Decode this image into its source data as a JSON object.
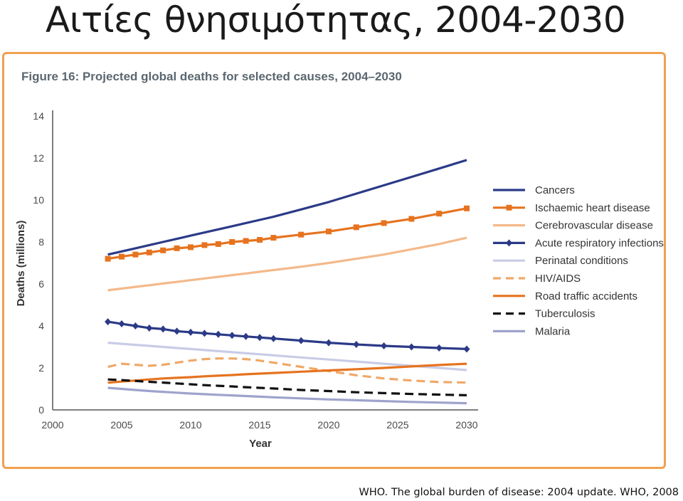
{
  "slide": {
    "title": "Αιτίες θνησιμότητας, 2004-2030",
    "caption": "WHO. The global burden of disease: 2004 update. WHO, 2008"
  },
  "chart_data": {
    "type": "line",
    "title": "Figure 16: Projected global deaths for selected causes, 2004–2030",
    "xlabel": "Year",
    "ylabel": "Deaths (millions)",
    "xlim": [
      2000,
      2030
    ],
    "ylim": [
      0,
      14
    ],
    "xticks": [
      2000,
      2005,
      2010,
      2015,
      2020,
      2025,
      2030
    ],
    "yticks": [
      0,
      2,
      4,
      6,
      8,
      10,
      12,
      14
    ],
    "grid": false,
    "legend_position": "right",
    "x": [
      2004,
      2005,
      2006,
      2007,
      2008,
      2009,
      2010,
      2011,
      2012,
      2013,
      2014,
      2015,
      2016,
      2018,
      2020,
      2022,
      2024,
      2026,
      2028,
      2030
    ],
    "series": [
      {
        "name": "Cancers",
        "color": "#2b3a87",
        "style": "solid",
        "marker": "none",
        "values": [
          7.4,
          7.55,
          7.7,
          7.85,
          8.0,
          8.15,
          8.3,
          8.45,
          8.6,
          8.75,
          8.9,
          9.05,
          9.2,
          9.55,
          9.9,
          10.3,
          10.7,
          11.1,
          11.5,
          11.9
        ]
      },
      {
        "name": "Ischaemic heart disease",
        "color": "#e6731f",
        "style": "solid",
        "marker": "square",
        "values": [
          7.2,
          7.3,
          7.4,
          7.5,
          7.6,
          7.7,
          7.75,
          7.85,
          7.9,
          8.0,
          8.05,
          8.1,
          8.2,
          8.35,
          8.5,
          8.7,
          8.9,
          9.1,
          9.35,
          9.6
        ]
      },
      {
        "name": "Cerebrovascular disease",
        "color": "#f4b98a",
        "style": "solid",
        "marker": "none",
        "values": [
          5.7,
          5.78,
          5.86,
          5.94,
          6.02,
          6.1,
          6.18,
          6.26,
          6.34,
          6.42,
          6.5,
          6.58,
          6.66,
          6.82,
          7.0,
          7.2,
          7.4,
          7.65,
          7.9,
          8.2
        ]
      },
      {
        "name": "Acute respiratory infections",
        "color": "#2b3a87",
        "style": "solid",
        "marker": "diamond",
        "values": [
          4.2,
          4.1,
          4.0,
          3.9,
          3.85,
          3.75,
          3.7,
          3.65,
          3.6,
          3.55,
          3.5,
          3.45,
          3.4,
          3.3,
          3.2,
          3.12,
          3.05,
          3.0,
          2.95,
          2.9
        ]
      },
      {
        "name": "Perinatal conditions",
        "color": "#c9cce6",
        "style": "solid",
        "marker": "none",
        "values": [
          3.2,
          3.15,
          3.1,
          3.05,
          3.0,
          2.95,
          2.9,
          2.85,
          2.8,
          2.75,
          2.7,
          2.65,
          2.6,
          2.5,
          2.4,
          2.3,
          2.2,
          2.1,
          2.0,
          1.9
        ]
      },
      {
        "name": "HIV/AIDS",
        "color": "#f0a868",
        "style": "dashed",
        "marker": "none",
        "values": [
          2.05,
          2.2,
          2.15,
          2.1,
          2.15,
          2.25,
          2.35,
          2.42,
          2.45,
          2.45,
          2.42,
          2.35,
          2.25,
          2.05,
          1.85,
          1.65,
          1.5,
          1.4,
          1.33,
          1.3
        ]
      },
      {
        "name": "Road traffic accidents",
        "color": "#e6731f",
        "style": "solid",
        "marker": "none",
        "values": [
          1.3,
          1.35,
          1.4,
          1.45,
          1.5,
          1.53,
          1.56,
          1.6,
          1.63,
          1.66,
          1.7,
          1.73,
          1.76,
          1.82,
          1.88,
          1.94,
          2.0,
          2.07,
          2.14,
          2.2
        ]
      },
      {
        "name": "Tuberculosis",
        "color": "#111111",
        "style": "dashed",
        "marker": "none",
        "values": [
          1.45,
          1.42,
          1.38,
          1.34,
          1.3,
          1.26,
          1.22,
          1.18,
          1.15,
          1.12,
          1.08,
          1.05,
          1.02,
          0.95,
          0.9,
          0.84,
          0.8,
          0.76,
          0.73,
          0.7
        ]
      },
      {
        "name": "Malaria",
        "color": "#9ea3cc",
        "style": "solid",
        "marker": "none",
        "values": [
          1.05,
          1.0,
          0.95,
          0.9,
          0.86,
          0.82,
          0.78,
          0.75,
          0.72,
          0.69,
          0.66,
          0.63,
          0.6,
          0.55,
          0.5,
          0.46,
          0.42,
          0.38,
          0.35,
          0.32
        ]
      }
    ]
  }
}
